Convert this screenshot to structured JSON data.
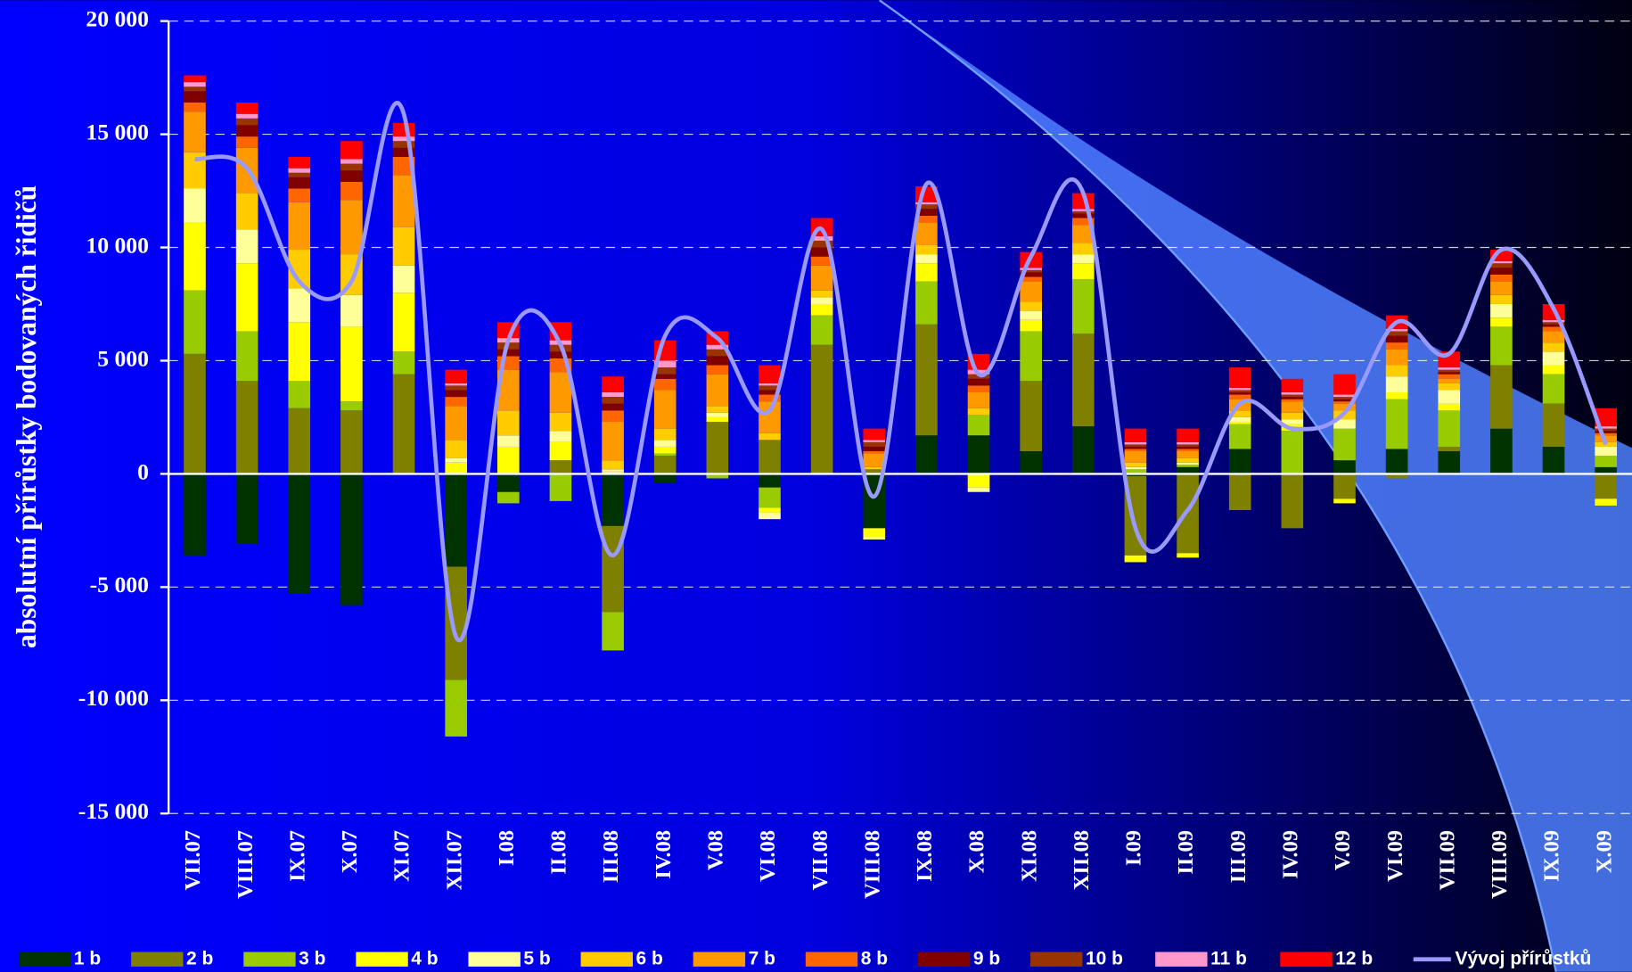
{
  "chart_data": {
    "type": "bar",
    "stacked": true,
    "y_label": "absolutní přírůstky bodovaných řidičů",
    "categories": [
      "VII.07",
      "VIII.07",
      "IX.07",
      "X.07",
      "XI.07",
      "XII.07",
      "I.08",
      "II.08",
      "III.08",
      "IV.08",
      "V.08",
      "VI.08",
      "VII.08",
      "VIII.08",
      "IX.08",
      "X.08",
      "XI.08",
      "XII.08",
      "I.09",
      "II.09",
      "III.09",
      "IV.09",
      "V.09",
      "VI.09",
      "VII.09",
      "VIII.09",
      "IX.09",
      "X.09"
    ],
    "ylim": [
      -15000,
      20000
    ],
    "yticks": [
      {
        "value": -15000,
        "label": "-15 000"
      },
      {
        "value": -10000,
        "label": "-10 000"
      },
      {
        "value": -5000,
        "label": "-5 000"
      },
      0,
      {
        "value": 5000,
        "label": "5 000"
      },
      {
        "value": 10000,
        "label": "10 000"
      },
      {
        "value": 15000,
        "label": "15 000"
      },
      {
        "value": 20000,
        "label": "20 000"
      }
    ],
    "grid": true,
    "legend": "bottom",
    "series": [
      {
        "name": "1 b",
        "color": "#003300",
        "values": [
          -3600,
          -3100,
          -5300,
          -5800,
          0,
          -4100,
          -800,
          0,
          -2300,
          -400,
          0,
          -600,
          0,
          -2400,
          1700,
          1700,
          1000,
          2100,
          -100,
          300,
          1100,
          0,
          600,
          1100,
          1000,
          2000,
          1200,
          300
        ]
      },
      {
        "name": "2 b",
        "color": "#808000",
        "values": [
          5300,
          4100,
          2900,
          2800,
          4400,
          -5000,
          0,
          600,
          -3800,
          800,
          2300,
          1500,
          5700,
          200,
          4900,
          0,
          3100,
          4100,
          -3500,
          -3500,
          -1600,
          -2400,
          -1100,
          -200,
          200,
          2800,
          1900,
          -1100
        ]
      },
      {
        "name": "3 b",
        "color": "#99cc00",
        "values": [
          2800,
          2200,
          1200,
          400,
          1000,
          -2500,
          -500,
          -1200,
          -1700,
          100,
          -200,
          -900,
          1300,
          0,
          1900,
          900,
          2200,
          2400,
          200,
          100,
          1100,
          1900,
          1400,
          2200,
          1600,
          1700,
          1300,
          500
        ]
      },
      {
        "name": "4 b",
        "color": "#ffff00",
        "values": [
          3000,
          3000,
          2600,
          3300,
          2600,
          500,
          1200,
          800,
          100,
          300,
          200,
          -200,
          500,
          -400,
          800,
          -600,
          500,
          700,
          -300,
          -200,
          100,
          300,
          -200,
          300,
          300,
          400,
          400,
          -300
        ]
      },
      {
        "name": "5 b",
        "color": "#ffff99",
        "values": [
          1500,
          1500,
          1500,
          1400,
          1200,
          200,
          500,
          500,
          100,
          300,
          200,
          -300,
          300,
          -100,
          400,
          -200,
          400,
          400,
          100,
          100,
          200,
          200,
          400,
          700,
          600,
          600,
          600,
          400
        ]
      },
      {
        "name": "6 b",
        "color": "#ffcc00",
        "values": [
          1600,
          1600,
          1700,
          1800,
          1700,
          800,
          1100,
          800,
          400,
          500,
          300,
          300,
          300,
          100,
          400,
          300,
          400,
          500,
          200,
          200,
          300,
          300,
          400,
          500,
          300,
          400,
          400,
          200
        ]
      },
      {
        "name": "7 b",
        "color": "#ff9900",
        "values": [
          1800,
          2000,
          2100,
          2400,
          2300,
          1500,
          1800,
          1800,
          1700,
          1700,
          1400,
          1400,
          1100,
          600,
          1000,
          700,
          900,
          800,
          500,
          300,
          500,
          500,
          300,
          700,
          200,
          600,
          500,
          300
        ]
      },
      {
        "name": "8 b",
        "color": "#ff6600",
        "values": [
          400,
          500,
          600,
          800,
          800,
          400,
          600,
          600,
          500,
          500,
          400,
          300,
          400,
          100,
          300,
          300,
          200,
          300,
          100,
          100,
          200,
          100,
          100,
          300,
          200,
          300,
          200,
          100
        ]
      },
      {
        "name": "9 b",
        "color": "#800000",
        "values": [
          500,
          500,
          500,
          500,
          400,
          300,
          300,
          300,
          300,
          200,
          400,
          200,
          400,
          200,
          300,
          300,
          200,
          200,
          100,
          100,
          100,
          100,
          100,
          300,
          100,
          300,
          100,
          100
        ]
      },
      {
        "name": "10 b",
        "color": "#993300",
        "values": [
          200,
          300,
          200,
          300,
          300,
          200,
          300,
          300,
          300,
          300,
          300,
          200,
          300,
          200,
          200,
          200,
          100,
          100,
          100,
          100,
          100,
          100,
          100,
          200,
          100,
          200,
          100,
          100
        ]
      },
      {
        "name": "11 b",
        "color": "#ff99cc",
        "values": [
          200,
          200,
          200,
          200,
          200,
          100,
          200,
          200,
          200,
          300,
          200,
          100,
          200,
          100,
          100,
          200,
          100,
          100,
          100,
          100,
          100,
          100,
          100,
          100,
          100,
          100,
          100,
          100
        ]
      },
      {
        "name": "12 b",
        "color": "#ff0000",
        "values": [
          300,
          500,
          500,
          800,
          600,
          600,
          700,
          800,
          700,
          900,
          600,
          800,
          800,
          500,
          700,
          700,
          700,
          700,
          600,
          600,
          900,
          600,
          900,
          600,
          700,
          500,
          700,
          800
        ]
      },
      {
        "name": "Vývoj přírůstků",
        "type": "line",
        "color": "#9999ff",
        "values": [
          13900,
          13500,
          8500,
          8500,
          15900,
          -7200,
          5900,
          5700,
          -3600,
          6100,
          6000,
          2800,
          10800,
          -1000,
          12800,
          4400,
          9600,
          12400,
          -2400,
          -1600,
          3100,
          2000,
          2700,
          6700,
          5300,
          9900,
          7300,
          1300
        ]
      }
    ]
  }
}
